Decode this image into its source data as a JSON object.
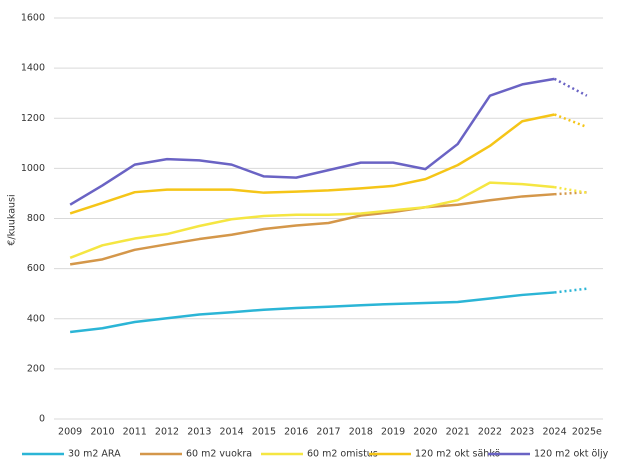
{
  "chart_data": {
    "type": "line",
    "y_label": "€/kuukausi",
    "categories": [
      "2009",
      "2010",
      "2011",
      "2012",
      "2013",
      "2014",
      "2015",
      "2016",
      "2017",
      "2018",
      "2019",
      "2020",
      "2021",
      "2022",
      "2023",
      "2024",
      "2025e"
    ],
    "series": [
      {
        "name": "30 m2 ARA",
        "color": "#2bb5d6",
        "values": [
          347,
          362,
          387,
          402,
          417,
          426,
          436,
          443,
          448,
          454,
          459,
          463,
          467,
          481,
          495,
          505,
          520
        ]
      },
      {
        "name": "60 m2 vuokra",
        "color": "#d4974a",
        "values": [
          617,
          637,
          675,
          697,
          718,
          735,
          758,
          772,
          782,
          812,
          826,
          845,
          855,
          873,
          888,
          897,
          905
        ]
      },
      {
        "name": "60 m2 omistus",
        "color": "#f5e642",
        "values": [
          643,
          693,
          720,
          738,
          770,
          797,
          810,
          815,
          815,
          820,
          833,
          845,
          873,
          943,
          937,
          925,
          903
        ]
      },
      {
        "name": "120 m2 okt sähkö",
        "color": "#f5c518",
        "values": [
          820,
          862,
          905,
          915,
          915,
          915,
          903,
          907,
          912,
          920,
          930,
          957,
          1013,
          1090,
          1188,
          1215,
          1165
        ]
      },
      {
        "name": "120 m2 okt öljy",
        "color": "#6a63c4",
        "values": [
          855,
          932,
          1015,
          1037,
          1032,
          1015,
          968,
          963,
          993,
          1023,
          1023,
          997,
          1097,
          1290,
          1335,
          1357,
          1290
        ]
      }
    ],
    "ylim": [
      0,
      1600
    ],
    "yticks": [
      0,
      200,
      400,
      600,
      800,
      1000,
      1200,
      1400,
      1600
    ],
    "grid": true,
    "legend": "bottom",
    "last_segment_style": "dotted"
  }
}
